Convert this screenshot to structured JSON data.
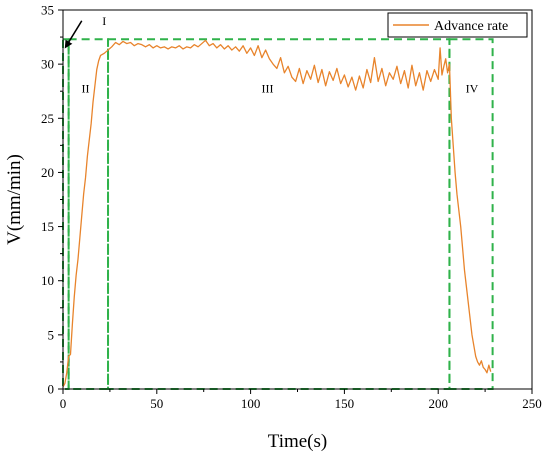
{
  "chart_data": {
    "type": "line",
    "xlabel": "Time(s)",
    "ylabel": "V(mm/min)",
    "xlim": [
      0,
      250
    ],
    "ylim": [
      0,
      35
    ],
    "xticks": [
      0,
      50,
      100,
      150,
      200,
      250
    ],
    "yticks": [
      0,
      5,
      10,
      15,
      20,
      25,
      30,
      35
    ],
    "grid": false,
    "legend": "top-right",
    "colors": {
      "series": "#e8842c",
      "phase_box": "#2fb24a",
      "axis": "#000000"
    },
    "series": [
      {
        "name": "Advance rate",
        "points": [
          [
            0,
            0.2
          ],
          [
            1,
            0.5
          ],
          [
            2,
            1.5
          ],
          [
            3,
            3.0
          ],
          [
            4,
            3.2
          ],
          [
            5,
            6.0
          ],
          [
            6,
            8.5
          ],
          [
            7,
            10.5
          ],
          [
            8,
            12.0
          ],
          [
            9,
            14.0
          ],
          [
            10,
            16.0
          ],
          [
            11,
            18.0
          ],
          [
            12,
            19.5
          ],
          [
            13,
            21.5
          ],
          [
            14,
            23.0
          ],
          [
            15,
            24.5
          ],
          [
            16,
            26.5
          ],
          [
            17,
            28.0
          ],
          [
            18,
            29.5
          ],
          [
            19,
            30.3
          ],
          [
            20,
            30.8
          ],
          [
            22,
            31.0
          ],
          [
            24,
            31.3
          ],
          [
            26,
            31.6
          ],
          [
            28,
            32.0
          ],
          [
            30,
            31.8
          ],
          [
            32,
            32.1
          ],
          [
            34,
            31.9
          ],
          [
            36,
            32.0
          ],
          [
            38,
            31.7
          ],
          [
            40,
            31.9
          ],
          [
            42,
            31.8
          ],
          [
            44,
            31.6
          ],
          [
            46,
            31.8
          ],
          [
            48,
            31.5
          ],
          [
            50,
            31.7
          ],
          [
            52,
            31.5
          ],
          [
            54,
            31.6
          ],
          [
            56,
            31.4
          ],
          [
            58,
            31.6
          ],
          [
            60,
            31.5
          ],
          [
            62,
            31.7
          ],
          [
            64,
            31.4
          ],
          [
            66,
            31.6
          ],
          [
            68,
            31.5
          ],
          [
            70,
            31.8
          ],
          [
            72,
            31.6
          ],
          [
            74,
            31.9
          ],
          [
            76,
            32.2
          ],
          [
            78,
            31.7
          ],
          [
            80,
            31.9
          ],
          [
            82,
            31.5
          ],
          [
            84,
            31.8
          ],
          [
            86,
            31.4
          ],
          [
            88,
            31.7
          ],
          [
            90,
            31.3
          ],
          [
            92,
            31.6
          ],
          [
            94,
            31.2
          ],
          [
            96,
            31.7
          ],
          [
            98,
            31.0
          ],
          [
            100,
            31.5
          ],
          [
            102,
            30.8
          ],
          [
            104,
            31.7
          ],
          [
            106,
            30.6
          ],
          [
            108,
            31.3
          ],
          [
            110,
            30.5
          ],
          [
            112,
            30.0
          ],
          [
            114,
            29.6
          ],
          [
            116,
            30.6
          ],
          [
            118,
            29.2
          ],
          [
            120,
            29.8
          ],
          [
            122,
            28.8
          ],
          [
            124,
            28.4
          ],
          [
            126,
            29.6
          ],
          [
            128,
            28.2
          ],
          [
            130,
            29.4
          ],
          [
            132,
            28.6
          ],
          [
            134,
            29.9
          ],
          [
            136,
            28.3
          ],
          [
            138,
            29.5
          ],
          [
            140,
            28.0
          ],
          [
            142,
            29.3
          ],
          [
            144,
            28.5
          ],
          [
            146,
            29.6
          ],
          [
            148,
            28.2
          ],
          [
            150,
            29.0
          ],
          [
            152,
            27.9
          ],
          [
            154,
            28.8
          ],
          [
            156,
            27.6
          ],
          [
            158,
            28.9
          ],
          [
            160,
            27.8
          ],
          [
            162,
            29.5
          ],
          [
            164,
            28.3
          ],
          [
            166,
            30.6
          ],
          [
            168,
            28.4
          ],
          [
            170,
            29.6
          ],
          [
            172,
            28.0
          ],
          [
            174,
            29.2
          ],
          [
            176,
            28.6
          ],
          [
            178,
            29.8
          ],
          [
            180,
            28.2
          ],
          [
            182,
            29.4
          ],
          [
            184,
            27.8
          ],
          [
            186,
            29.9
          ],
          [
            188,
            28.0
          ],
          [
            190,
            29.2
          ],
          [
            192,
            27.6
          ],
          [
            194,
            29.4
          ],
          [
            196,
            28.4
          ],
          [
            198,
            29.5
          ],
          [
            200,
            28.6
          ],
          [
            201,
            31.5
          ],
          [
            202,
            29.0
          ],
          [
            203,
            29.8
          ],
          [
            204,
            30.5
          ],
          [
            205,
            29.2
          ],
          [
            206,
            30.0
          ],
          [
            207,
            25.0
          ],
          [
            208,
            22.5
          ],
          [
            209,
            20.0
          ],
          [
            210,
            18.0
          ],
          [
            211,
            16.5
          ],
          [
            212,
            15.0
          ],
          [
            213,
            13.0
          ],
          [
            214,
            11.0
          ],
          [
            215,
            9.5
          ],
          [
            216,
            8.0
          ],
          [
            217,
            6.5
          ],
          [
            218,
            5.0
          ],
          [
            219,
            4.0
          ],
          [
            220,
            3.0
          ],
          [
            221,
            2.5
          ],
          [
            222,
            2.2
          ],
          [
            223,
            2.6
          ],
          [
            224,
            2.0
          ],
          [
            225,
            1.8
          ],
          [
            226,
            1.5
          ],
          [
            227,
            2.2
          ],
          [
            228,
            1.6
          ]
        ]
      }
    ],
    "phases": [
      {
        "label": "I",
        "x0": 0,
        "x1": 3,
        "y0": 0,
        "y1": 32.3
      },
      {
        "label": "II",
        "x0": 3,
        "x1": 24,
        "y0": 0,
        "y1": 32.3
      },
      {
        "label": "III",
        "x0": 24,
        "x1": 206,
        "y0": 0,
        "y1": 32.3
      },
      {
        "label": "IV",
        "x0": 206,
        "x1": 229,
        "y0": 0,
        "y1": 32.3
      }
    ],
    "phase_label_positions": [
      {
        "label": "I",
        "x": 22,
        "y": 33.6
      },
      {
        "label": "II",
        "x": 12,
        "y": 27.4
      },
      {
        "label": "III",
        "x": 109,
        "y": 27.4
      },
      {
        "label": "IV",
        "x": 218,
        "y": 27.4
      }
    ],
    "annotations": [
      {
        "type": "arrow",
        "from": [
          10,
          34.0
        ],
        "to": [
          1.5,
          31.6
        ]
      }
    ]
  }
}
